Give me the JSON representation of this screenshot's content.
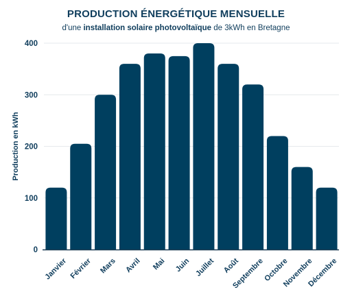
{
  "colors": {
    "bar": "#003f5f",
    "text": "#0f3d5c",
    "grid": "#e6e9ec",
    "axis": "#1a3a52"
  },
  "chart_data": {
    "type": "bar",
    "title": "PRODUCTION ÉNERGÉTIQUE MENSUELLE",
    "subtitle": {
      "prefix": "d'une ",
      "bold": "installation solaire photovoltaïque",
      "suffix": " de 3kWh en Bretagne"
    },
    "xlabel": "",
    "ylabel": "Production en kWh",
    "ylim": [
      0,
      400
    ],
    "yticks": [
      0,
      100,
      200,
      300,
      400
    ],
    "grid": true,
    "categories": [
      "Janvier",
      "Février",
      "Mars",
      "Avril",
      "Mai",
      "Juin",
      "Juillet",
      "Août",
      "Septembre",
      "Octobre",
      "Novembre",
      "Décembre"
    ],
    "values": [
      120,
      205,
      300,
      360,
      380,
      375,
      400,
      360,
      320,
      220,
      160,
      120
    ]
  }
}
